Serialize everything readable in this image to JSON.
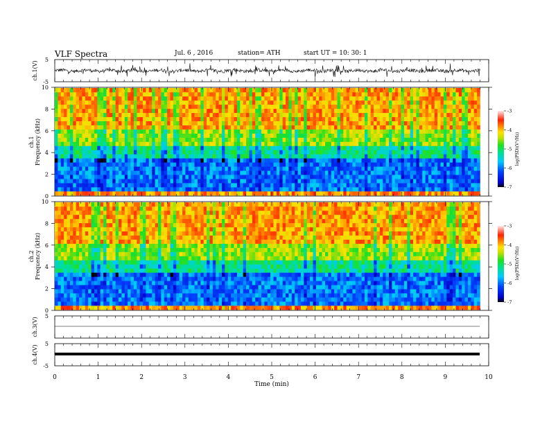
{
  "header": {
    "title": "VLF Spectra",
    "date": "Jul. 6 , 2016",
    "station": "station= ATH",
    "start": "start UT = 10: 30: 1"
  },
  "chart_data": [
    {
      "type": "line",
      "name": "ch1-waveform",
      "ylabel": "ch.1(V)",
      "ylim": [
        -5,
        5
      ],
      "yticks": [
        "5",
        "-5"
      ],
      "xlim": [
        0,
        10
      ]
    },
    {
      "type": "heatmap",
      "name": "ch1-spectrogram",
      "ylabel_channel": "ch.1",
      "ylabel": "Frequency (kHz)",
      "ylim": [
        0,
        10
      ],
      "yticks": [
        "0",
        "2",
        "4",
        "6",
        "8",
        "10"
      ],
      "xlim": [
        0,
        9.8
      ],
      "colorbar": {
        "label": "log(PSD)(V²/Hz)",
        "range": [
          -7,
          -3
        ],
        "ticks": [
          "-3",
          "-4",
          "-5",
          "-6",
          "-7"
        ]
      }
    },
    {
      "type": "heatmap",
      "name": "ch2-spectrogram",
      "ylabel_channel": "ch.2",
      "ylabel": "Frequency (kHz)",
      "ylim": [
        0,
        10
      ],
      "yticks": [
        "0",
        "2",
        "4",
        "6",
        "8",
        "10"
      ],
      "xlim": [
        0,
        9.8
      ],
      "colorbar": {
        "label": "log(PSD)(V²/Hz)",
        "range": [
          -7,
          -3
        ],
        "ticks": [
          "-3",
          "-4",
          "-5",
          "-6",
          "-7"
        ]
      }
    },
    {
      "type": "line",
      "name": "ch3-waveform",
      "ylabel": "ch.3(V)",
      "ylim": [
        -5,
        5
      ],
      "yticks": [
        "5"
      ],
      "xlim": [
        0,
        10
      ]
    },
    {
      "type": "line",
      "name": "ch4-waveform",
      "ylabel": "ch.4(V)",
      "ylim": [
        -5,
        5
      ],
      "yticks": [
        "5",
        "-5"
      ],
      "xlim": [
        0,
        10
      ],
      "xlabel": "Time (min)",
      "xticks": [
        "0",
        "1",
        "2",
        "3",
        "4",
        "5",
        "6",
        "7",
        "8",
        "9",
        "10"
      ]
    }
  ]
}
